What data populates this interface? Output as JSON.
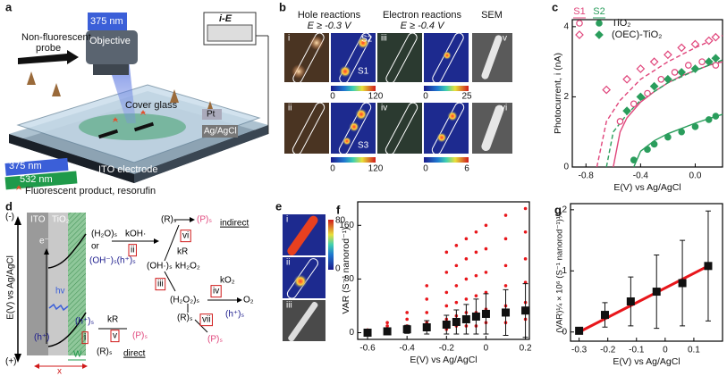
{
  "panel_labels": [
    "a",
    "b",
    "c",
    "d",
    "e",
    "f",
    "g"
  ],
  "panel_a": {
    "probe_label": [
      "Non-fluorescent",
      "probe"
    ],
    "laser_top": "375 nm",
    "objective": "Objective",
    "ie_box": "i-E",
    "cover_glass": "Cover glass",
    "pt": "Pt",
    "reference": "Ag/AgCl",
    "laser_uv": "375 nm",
    "laser_green": "532 nm",
    "electrode": "ITO electrode",
    "product": "Fluorescent product, resorufin"
  },
  "panel_b": {
    "hole_title": "Hole reactions",
    "hole_condition": "E ≥ -0.3 V",
    "electron_title": "Electron reactions",
    "electron_condition": "E ≥ -0.4 V",
    "sem_title": "SEM",
    "image_labels": [
      "i",
      "ii",
      "iii",
      "iv",
      "v",
      "vi"
    ],
    "site_labels": [
      "S2",
      "S1",
      "S3"
    ],
    "colorbars": [
      {
        "min": "0",
        "max": "120"
      },
      {
        "min": "0",
        "max": "25"
      },
      {
        "min": "0",
        "max": "120"
      },
      {
        "min": "0",
        "max": "6"
      }
    ]
  },
  "panel_d": {
    "labels": [
      "(-)",
      "(+)",
      "E(V) vs Ag/AgCl",
      "ITO",
      "TiO₂",
      "e⁻",
      "hv",
      "(h⁺)",
      "(h⁺)ₛ",
      "i",
      "W",
      "x",
      "kR",
      "v",
      "(P)ₛ",
      "(R)ₛ",
      "direct",
      "(H₂O)ₛ",
      "kOH·",
      "or",
      "ii",
      "(OH⁻)ₛ(h⁺)ₛ",
      "(OH·)ₛ",
      "kH₂O₂",
      "iii",
      "(H₂O₂)ₛ",
      "iv",
      "kO₂",
      "O₂",
      "(R)ₛ",
      "vii",
      "(h⁺)ₛ",
      "(P)ₛ",
      "(R)ₛ",
      "(P)ₛ",
      "indirect",
      "vi",
      "kR"
    ]
  },
  "panel_e": {
    "image_labels": [
      "i",
      "ii",
      "iii"
    ],
    "colorbar": {
      "max": "80",
      "min": "0"
    }
  },
  "chart_data": [
    {
      "type": "scatter",
      "xlabel": "E(V) vs Ag/AgCl",
      "ylabel": "Photocurrent, i (nA)",
      "xlim": [
        -0.9,
        0.2
      ],
      "ylim": [
        0,
        4.2
      ],
      "xticks": [
        {
          "value": -0.8,
          "label": "-0.8"
        },
        {
          "value": -0.4,
          "label": "-0.4"
        },
        {
          "value": 0,
          "label": "0.0"
        }
      ],
      "yticks": [
        0,
        2,
        4
      ],
      "legend": {
        "columns": [
          "S1",
          "S2"
        ],
        "rows": [
          "TiO₂",
          "(OEC)-TiO₂"
        ]
      },
      "series": [
        {
          "column": 0,
          "row": 0,
          "marker": "circle",
          "filled": false,
          "color": "#e0457b",
          "x": [
            -0.55,
            -0.45,
            -0.35,
            -0.25,
            -0.15,
            -0.05,
            0.05,
            0.15
          ],
          "values": [
            1.3,
            1.8,
            2.1,
            2.5,
            2.7,
            2.9,
            3.0,
            2.9
          ]
        },
        {
          "column": 1,
          "row": 0,
          "marker": "circle",
          "filled": true,
          "color": "#2a9d5c",
          "x": [
            -0.45,
            -0.35,
            -0.3,
            -0.2,
            -0.1,
            0,
            0.1,
            0.15
          ],
          "values": [
            0.2,
            0.5,
            0.65,
            0.85,
            1.0,
            1.15,
            1.35,
            1.45
          ]
        },
        {
          "column": 0,
          "row": 1,
          "marker": "diamond",
          "filled": false,
          "color": "#e0457b",
          "x": [
            -0.65,
            -0.5,
            -0.4,
            -0.3,
            -0.2,
            -0.1,
            0,
            0.1,
            0.15
          ],
          "values": [
            2.2,
            2.5,
            2.8,
            3.0,
            3.2,
            3.4,
            3.5,
            3.6,
            3.7
          ]
        },
        {
          "column": 1,
          "row": 1,
          "marker": "diamond",
          "filled": true,
          "color": "#2a9d5c",
          "x": [
            -0.5,
            -0.4,
            -0.3,
            -0.2,
            -0.1,
            0,
            0.1,
            0.15
          ],
          "values": [
            1.6,
            2.0,
            2.3,
            2.5,
            2.7,
            2.8,
            3.0,
            3.1
          ]
        }
      ],
      "fits": [
        {
          "color": "#e0457b",
          "style": "solid",
          "x": [
            -0.6,
            -0.55,
            -0.5,
            -0.4,
            -0.3,
            -0.2,
            -0.1,
            0,
            0.1,
            0.2
          ],
          "values": [
            0,
            1.0,
            1.4,
            1.85,
            2.15,
            2.4,
            2.6,
            2.75,
            2.9,
            3.0
          ]
        },
        {
          "color": "#2a9d5c",
          "style": "solid",
          "x": [
            -0.45,
            -0.4,
            -0.3,
            -0.2,
            -0.1,
            0,
            0.1,
            0.2
          ],
          "values": [
            0,
            0.45,
            0.75,
            0.95,
            1.1,
            1.25,
            1.38,
            1.5
          ]
        },
        {
          "color": "#e0457b",
          "style": "dashed",
          "x": [
            -0.72,
            -0.65,
            -0.55,
            -0.4,
            -0.2,
            0,
            0.2
          ],
          "values": [
            0,
            1.3,
            1.9,
            2.5,
            3.0,
            3.4,
            3.75
          ]
        },
        {
          "color": "#2a9d5c",
          "style": "dashed",
          "x": [
            -0.65,
            -0.6,
            -0.5,
            -0.4,
            -0.2,
            0,
            0.2
          ],
          "values": [
            0,
            1.0,
            1.5,
            1.9,
            2.4,
            2.75,
            3.05
          ]
        }
      ]
    },
    {
      "type": "scatter",
      "xlabel": "E(V) vs Ag/AgCl",
      "ylabel": "VAR (S⁻¹ nanorod⁻¹)",
      "xlim": [
        -0.65,
        0.22
      ],
      "ylim": [
        -10,
        195
      ],
      "xticks": [
        {
          "value": -0.6,
          "label": "-0.6"
        },
        {
          "value": -0.4,
          "label": "-0.4"
        },
        {
          "value": -0.2,
          "label": "-0.2"
        },
        0,
        0.2
      ],
      "yticks": [
        0,
        80,
        160
      ],
      "series": [
        {
          "marker": "dot",
          "filled": true,
          "color": "#e8161b",
          "x": [
            -0.6,
            -0.6,
            -0.6,
            -0.5,
            -0.5,
            -0.5,
            -0.5,
            -0.4,
            -0.4,
            -0.4,
            -0.4,
            -0.3,
            -0.3,
            -0.3,
            -0.3,
            -0.3,
            -0.2,
            -0.2,
            -0.2,
            -0.2,
            -0.2,
            -0.2,
            -0.15,
            -0.15,
            -0.15,
            -0.15,
            -0.15,
            -0.15,
            -0.1,
            -0.1,
            -0.1,
            -0.1,
            -0.1,
            -0.1,
            -0.05,
            -0.05,
            -0.05,
            -0.05,
            -0.05,
            -0.05,
            0,
            0,
            0,
            0,
            0,
            0,
            0.1,
            0.1,
            0.1,
            0.1,
            0.1,
            0.1,
            0.2,
            0.2,
            0.2,
            0.2,
            0.2,
            0.2
          ],
          "values": [
            0,
            2,
            4,
            1,
            5,
            10,
            15,
            2,
            10,
            20,
            30,
            5,
            15,
            30,
            50,
            70,
            5,
            20,
            40,
            60,
            90,
            120,
            10,
            25,
            45,
            70,
            100,
            130,
            10,
            30,
            50,
            80,
            110,
            140,
            10,
            30,
            55,
            85,
            120,
            150,
            15,
            35,
            60,
            90,
            125,
            160,
            15,
            40,
            70,
            100,
            140,
            175,
            20,
            45,
            75,
            110,
            150,
            185
          ]
        },
        {
          "marker": "square",
          "filled": true,
          "color": "#111111",
          "x": [
            -0.6,
            -0.5,
            -0.4,
            -0.3,
            -0.2,
            -0.15,
            -0.1,
            -0.05,
            0,
            0.1,
            0.2
          ],
          "values": [
            0,
            2,
            5,
            8,
            12,
            16,
            20,
            24,
            28,
            30,
            33
          ],
          "errors": [
            2,
            4,
            6,
            10,
            14,
            18,
            22,
            26,
            30,
            34,
            40
          ]
        }
      ]
    },
    {
      "type": "scatter",
      "xlabel": "E(V) vs Ag/AgCl",
      "ylabel": "(VAR)¼ × 10⁶ (S⁻¹ nanorod⁻¹)¼",
      "xlim": [
        -0.33,
        0.2
      ],
      "ylim": [
        -0.15,
        2.1
      ],
      "xticks": [
        {
          "value": -0.3,
          "label": "-0.3"
        },
        {
          "value": -0.2,
          "label": "-0.2"
        },
        {
          "value": -0.1,
          "label": "-0.1"
        },
        0,
        0.1
      ],
      "yticks": [
        0,
        1,
        2
      ],
      "series": [
        {
          "marker": "square",
          "filled": true,
          "color": "#111111",
          "x": [
            -0.3,
            -0.21,
            -0.12,
            -0.03,
            0.06,
            0.15
          ],
          "values": [
            0.02,
            0.28,
            0.5,
            0.66,
            0.8,
            1.08
          ],
          "errors": [
            0.05,
            0.2,
            0.4,
            0.6,
            0.7,
            0.9
          ]
        }
      ],
      "fits": [
        {
          "color": "#e8161b",
          "style": "thick",
          "x": [
            -0.3,
            0.15
          ],
          "values": [
            0,
            1.08
          ]
        }
      ]
    }
  ]
}
